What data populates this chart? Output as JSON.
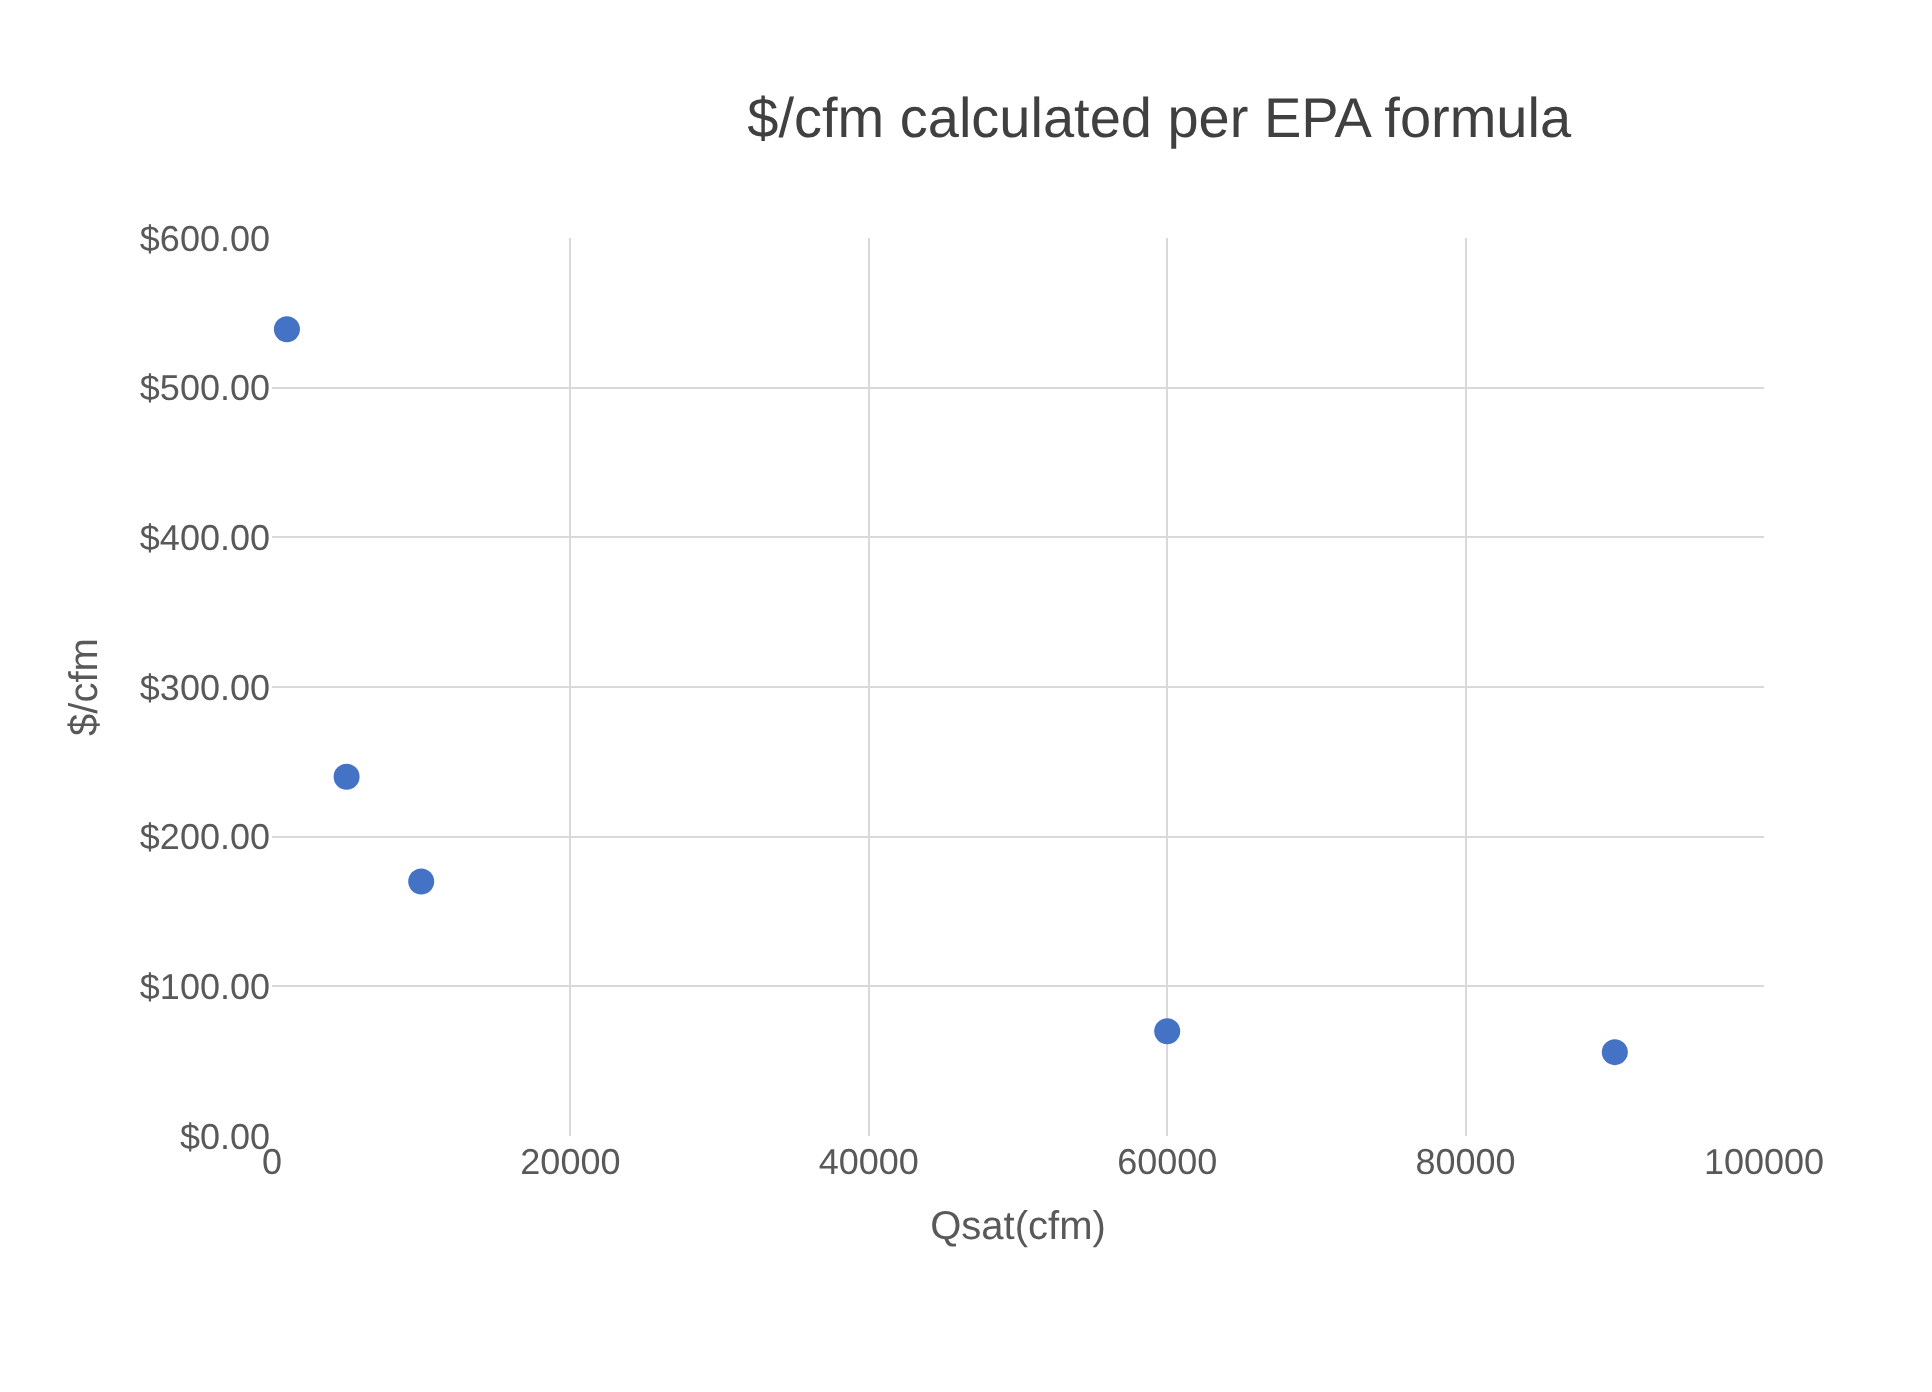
{
  "chart_data": {
    "type": "scatter",
    "title": "$/cfm calculated per EPA formula",
    "xlabel": "Qsat(cfm)",
    "ylabel": "$/cfm",
    "x": [
      1000,
      5000,
      10000,
      60000,
      90000
    ],
    "series": [
      {
        "color": "#4472c4",
        "values": [
          539,
          240,
          170,
          70,
          56
        ]
      }
    ],
    "xlim": [
      0,
      100000
    ],
    "xticks": [
      0,
      20000,
      40000,
      60000,
      80000,
      100000
    ],
    "ylim": [
      0,
      600
    ],
    "yticks": [
      {
        "value": 0,
        "label": "$0.00"
      },
      {
        "value": 100,
        "label": "$100.00"
      },
      {
        "value": 200,
        "label": "$200.00"
      },
      {
        "value": 300,
        "label": "$300.00"
      },
      {
        "value": 400,
        "label": "$400.00"
      },
      {
        "value": 500,
        "label": "$500.00"
      },
      {
        "value": 600,
        "label": "$600.00"
      }
    ],
    "grid": true,
    "marker": "circle"
  }
}
